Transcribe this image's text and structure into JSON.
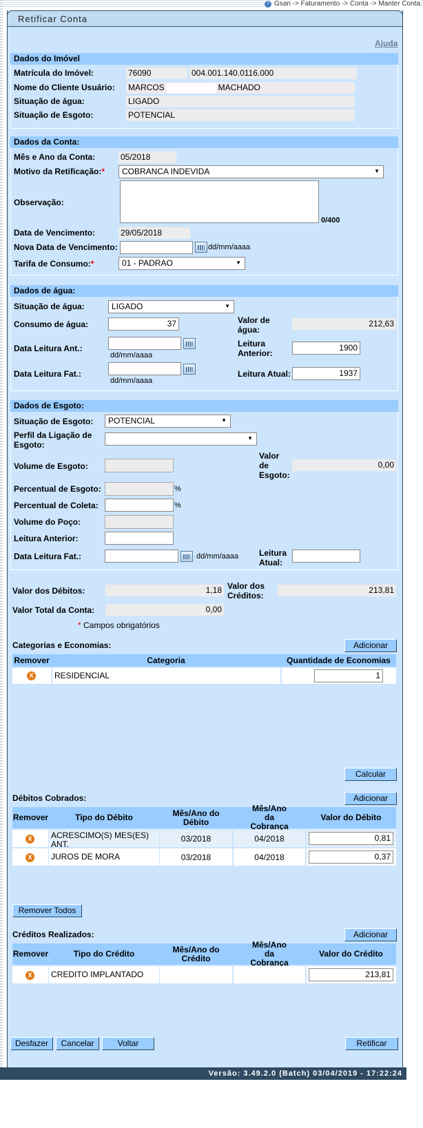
{
  "breadcrumb": "Gsan -> Faturamento -> Conta -> Manter Conta",
  "title": "Retificar Conta",
  "help": "Ajuda",
  "imovel": {
    "header": "Dados do Imóvel",
    "matricula_label": "Matrícula do Imóvel:",
    "matricula": "76090",
    "inscricao": "004.001.140.0116.000",
    "cliente_label": "Nome do Cliente Usuário:",
    "cliente_first": "MARCOS",
    "cliente_last": "MACHADO",
    "agua_label": "Situação de água:",
    "agua": "LIGADO",
    "esgoto_label": "Situação de Esgoto:",
    "esgoto": "POTENCIAL"
  },
  "conta": {
    "header": "Dados da Conta:",
    "mes_ano_label": "Mês e Ano da Conta:",
    "mes_ano": "05/2018",
    "motivo_label": "Motivo da Retificação:",
    "motivo": "COBRANCA INDEVIDA",
    "obs_label": "Observação:",
    "obs": "",
    "obs_count": "0/400",
    "venc_label": "Data de Vencimento:",
    "venc": "29/05/2018",
    "nova_venc_label": "Nova Data de Vencimento:",
    "nova_venc": "",
    "date_hint": "dd/mm/aaaa",
    "tarifa_label": "Tarifa de Consumo:",
    "tarifa": "01 - PADRAO"
  },
  "agua": {
    "header": "Dados de água:",
    "situacao_label": "Situação de água:",
    "situacao": "LIGADO",
    "consumo_label": "Consumo de água:",
    "consumo": "37",
    "valor_label": "Valor de água:",
    "valor": "212,63",
    "data_ant_label": "Data Leitura Ant.:",
    "data_ant": "",
    "leit_ant_label": "Leitura Anterior:",
    "leit_ant": "1900",
    "data_fat_label": "Data Leitura Fat.:",
    "data_fat": "",
    "leit_atual_label": "Leitura Atual:",
    "leit_atual": "1937",
    "date_hint": "dd/mm/aaaa"
  },
  "esgoto": {
    "header": "Dados de Esgoto:",
    "situacao_label": "Situação de Esgoto:",
    "situacao": "POTENCIAL",
    "perfil_label": "Perfil da Ligação de Esgoto:",
    "perfil": "",
    "volume_label": "Volume de Esgoto:",
    "valor_label": "Valor de Esgoto:",
    "valor": "0,00",
    "perc_esgoto_label": "Percentual de Esgoto:",
    "perc_coleta_label": "Percentual de Coleta:",
    "percent": "%",
    "poco_label": "Volume do Poço:",
    "leit_ant_label": "Leitura Anterior:",
    "data_fat_label": "Data Leitura Fat.:",
    "date_hint": "dd/mm/aaaa",
    "leit_atual_label": "Leitura Atual:"
  },
  "totais": {
    "debitos_label": "Valor dos Débitos:",
    "debitos": "1,18",
    "creditos_label": "Valor dos Créditos:",
    "creditos": "213,81",
    "total_label": "Valor Total da Conta:",
    "total": "0,00",
    "required_note": "Campos obrigatórios",
    "required_mark": "*"
  },
  "categorias": {
    "title": "Categorias e Economias:",
    "add": "Adicionar",
    "headers": [
      "Remover",
      "Categoria",
      "Quantidade de Economias"
    ],
    "rows": [
      {
        "categoria": "RESIDENCIAL",
        "qtd": "1"
      }
    ],
    "calcular": "Calcular"
  },
  "debitos": {
    "title": "Débitos Cobrados:",
    "add": "Adicionar",
    "headers": [
      "Remover",
      "Tipo do Débito",
      "Mês/Ano do Débito",
      "Mês/Ano da Cobrança",
      "Valor do Débito"
    ],
    "rows": [
      {
        "tipo": "ACRESCIMO(S) MES(ES) ANT.",
        "mes_debito": "03/2018",
        "mes_cobranca": "04/2018",
        "valor": "0,81"
      },
      {
        "tipo": "JUROS DE MORA",
        "mes_debito": "03/2018",
        "mes_cobranca": "04/2018",
        "valor": "0,37"
      }
    ],
    "remover_todos": "Remover Todos"
  },
  "creditos": {
    "title": "Créditos Realizados:",
    "add": "Adicionar",
    "headers": [
      "Remover",
      "Tipo do Crédito",
      "Mês/Ano do Crédito",
      "Mês/Ano da Cobrança",
      "Valor do Crédito"
    ],
    "rows": [
      {
        "tipo": "CREDITO IMPLANTADO",
        "mes_credito": "",
        "mes_cobranca": "",
        "valor": "213,81"
      }
    ]
  },
  "actions": {
    "desfazer": "Desfazer",
    "cancelar": "Cancelar",
    "voltar": "Voltar",
    "retificar": "Retificar"
  },
  "footer": "Versão: 3.49.2.0 (Batch) 03/04/2019 - 17:22:24",
  "colors": {
    "panel": "#cce5fd",
    "header": "#99ccff",
    "footer": "#2f4a62",
    "remove_icon": "#e07a14"
  }
}
